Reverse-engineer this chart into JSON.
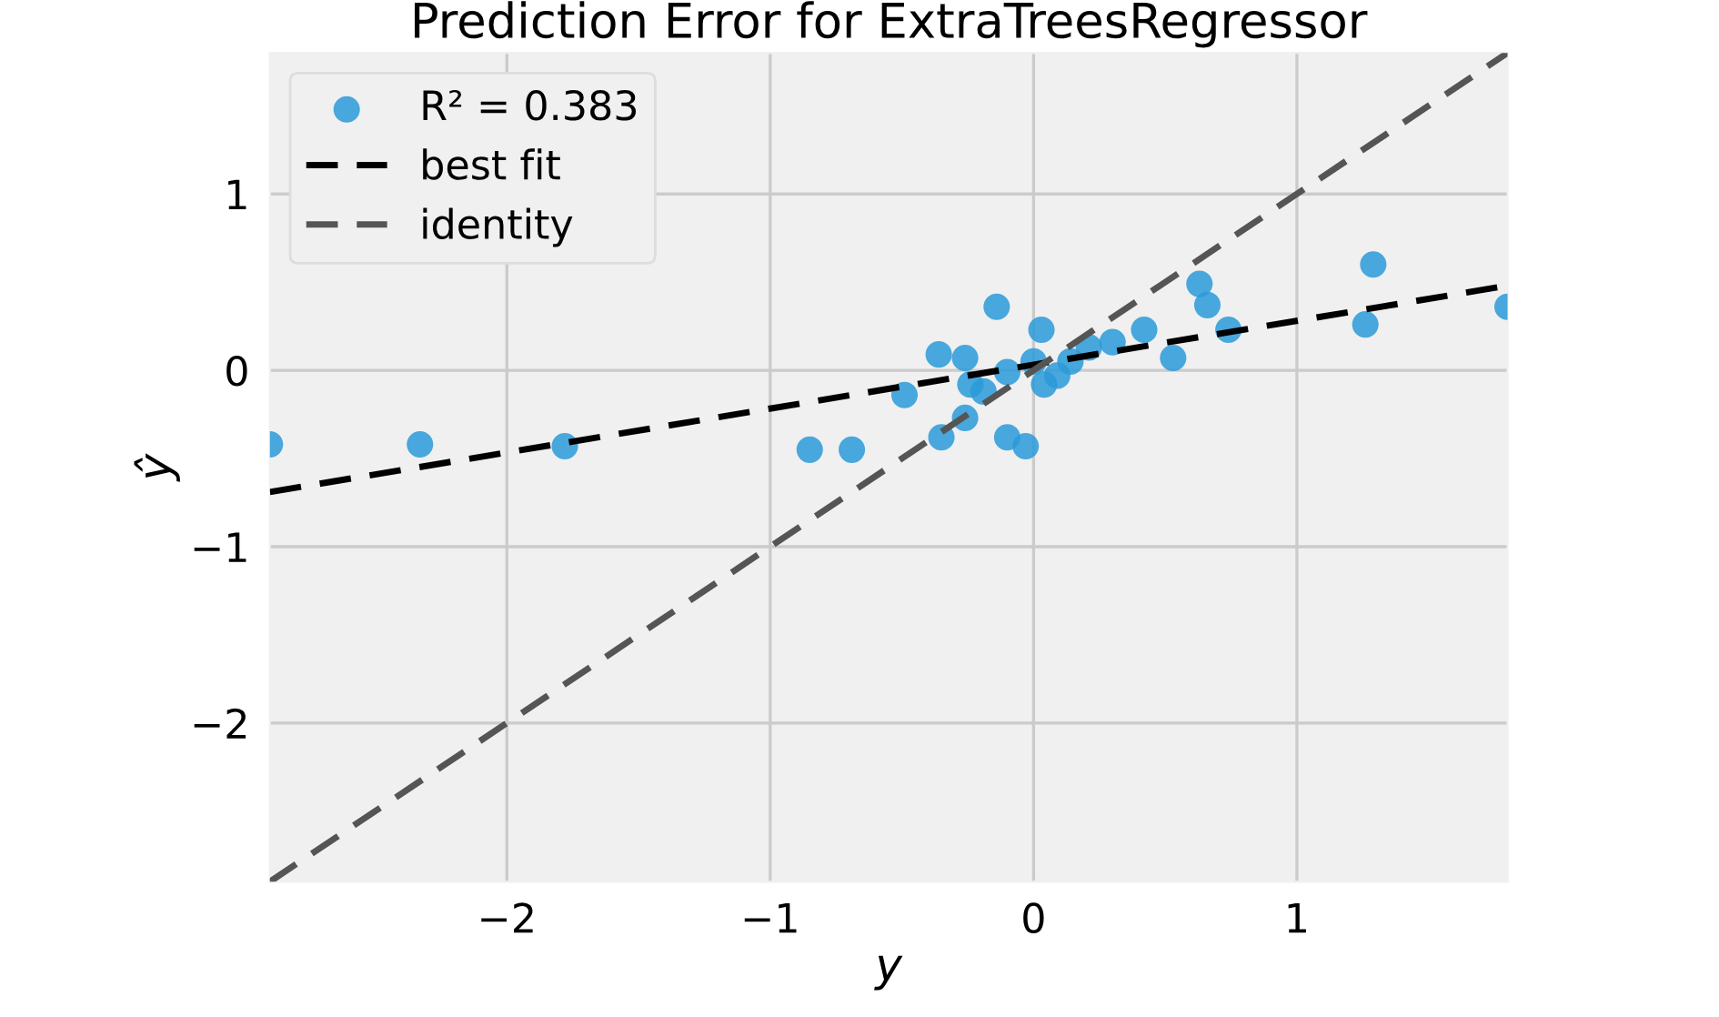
{
  "chart_data": {
    "type": "scatter",
    "title": "Prediction Error for ExtraTreesRegressor",
    "xlabel": "y",
    "ylabel": "ŷ",
    "xlim": [
      -2.9,
      1.8
    ],
    "ylim": [
      -2.9,
      1.8
    ],
    "xticks": [
      {
        "value": -2,
        "label": "−2"
      },
      {
        "value": -1,
        "label": "−1"
      },
      0,
      1
    ],
    "yticks": [
      {
        "value": -2,
        "label": "−2"
      },
      {
        "value": -1,
        "label": "−1"
      },
      0,
      1
    ],
    "grid": true,
    "legend": "top left",
    "series": [
      {
        "name": "R² = 0.383",
        "marker": "circle",
        "color": "#2a9ad8",
        "x": [
          -2.9,
          -2.33,
          -1.78,
          -0.85,
          -0.69,
          -0.49,
          -0.14,
          0.03,
          -0.36,
          -0.26,
          -0.35,
          -0.26,
          -0.1,
          -0.03,
          -0.19,
          -0.1,
          0.04,
          0.14,
          0.21,
          0.3,
          0.42,
          0.53,
          0.63,
          0.66,
          0.74,
          1.26,
          1.29,
          1.8,
          0,
          0.09,
          -0.24
        ],
        "values": [
          -0.42,
          -0.42,
          -0.43,
          -0.45,
          -0.45,
          -0.14,
          0.36,
          0.23,
          0.09,
          0.07,
          -0.38,
          -0.27,
          -0.38,
          -0.43,
          -0.12,
          -0.01,
          -0.08,
          0.05,
          0.13,
          0.16,
          0.23,
          0.07,
          0.49,
          0.37,
          0.23,
          0.26,
          0.6,
          0.36,
          0.05,
          -0.03,
          -0.08
        ]
      },
      {
        "name": "best fit",
        "type": "line",
        "line_style": "dashed",
        "color": "#000000",
        "x": [
          -2.9,
          1.8
        ],
        "values": [
          -0.69,
          0.48
        ]
      },
      {
        "name": "identity",
        "type": "line",
        "line_style": "dashed",
        "color": "#555555",
        "x": [
          -2.9,
          1.8
        ],
        "values": [
          -2.9,
          1.8
        ]
      }
    ]
  }
}
